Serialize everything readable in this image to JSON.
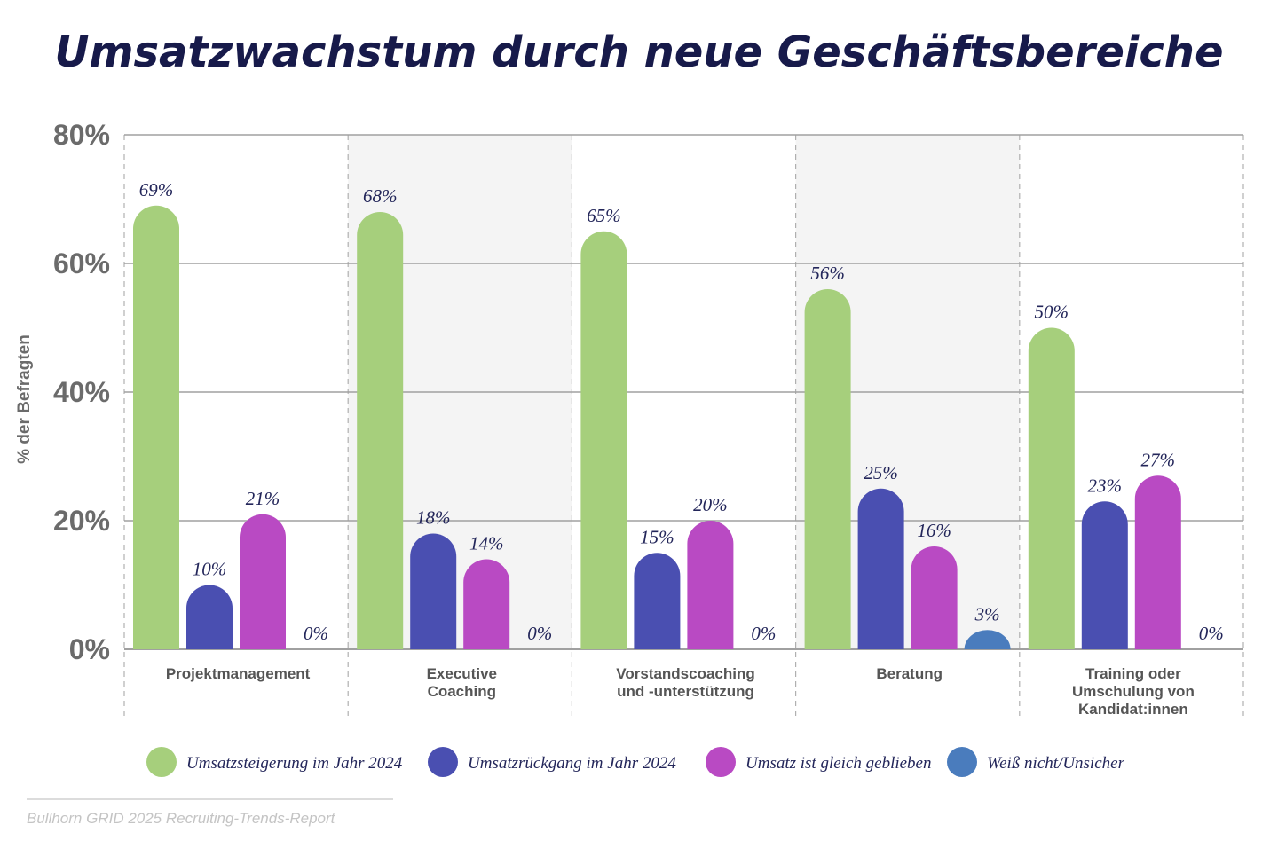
{
  "chart_data": {
    "type": "bar",
    "title": "Umsatzwachstum durch neue Geschäftsbereiche",
    "ylabel": "% der Befragten",
    "xlabel": "",
    "ylim": [
      0,
      80
    ],
    "yticks": [
      "0%",
      "20%",
      "40%",
      "60%",
      "80%"
    ],
    "ytick_values": [
      0,
      20,
      40,
      60,
      80
    ],
    "categories": [
      [
        "Projektmanagement"
      ],
      [
        "Executive",
        "Coaching"
      ],
      [
        "Vorstandscoaching",
        "und -unterstützung"
      ],
      [
        "Beratung"
      ],
      [
        "Training oder",
        "Umschulung von",
        "Kandidat:innen"
      ]
    ],
    "series": [
      {
        "name": "Umsatzsteigerung im Jahr 2024",
        "color": "#a6cf7c",
        "values": [
          69,
          68,
          65,
          56,
          50
        ],
        "labels": [
          "69%",
          "68%",
          "65%",
          "56%",
          "50%"
        ]
      },
      {
        "name": "Umsatzrückgang im Jahr 2024",
        "color": "#4a4fb1",
        "values": [
          10,
          18,
          15,
          25,
          23
        ],
        "labels": [
          "10%",
          "18%",
          "15%",
          "25%",
          "23%"
        ]
      },
      {
        "name": "Umsatz ist gleich geblieben",
        "color": "#b94ac3",
        "values": [
          21,
          14,
          20,
          16,
          27
        ],
        "labels": [
          "21%",
          "14%",
          "20%",
          "16%",
          "27%"
        ]
      },
      {
        "name": "Weiß nicht/Unsicher",
        "color": "#4a7cbd",
        "values": [
          0,
          0,
          0,
          3,
          0
        ],
        "labels": [
          "0%",
          "0%",
          "0%",
          "3%",
          "0%"
        ]
      }
    ],
    "grid": true,
    "legend": "bottom"
  },
  "colors": {
    "title": "#171a4a",
    "axis_text": "#6b6b6b",
    "gridline": "#a0a0a0",
    "shaded_group": "#f4f4f4",
    "source_text": "#c4c4c4"
  },
  "source": "Bullhorn GRID 2025 Recruiting-Trends-Report"
}
